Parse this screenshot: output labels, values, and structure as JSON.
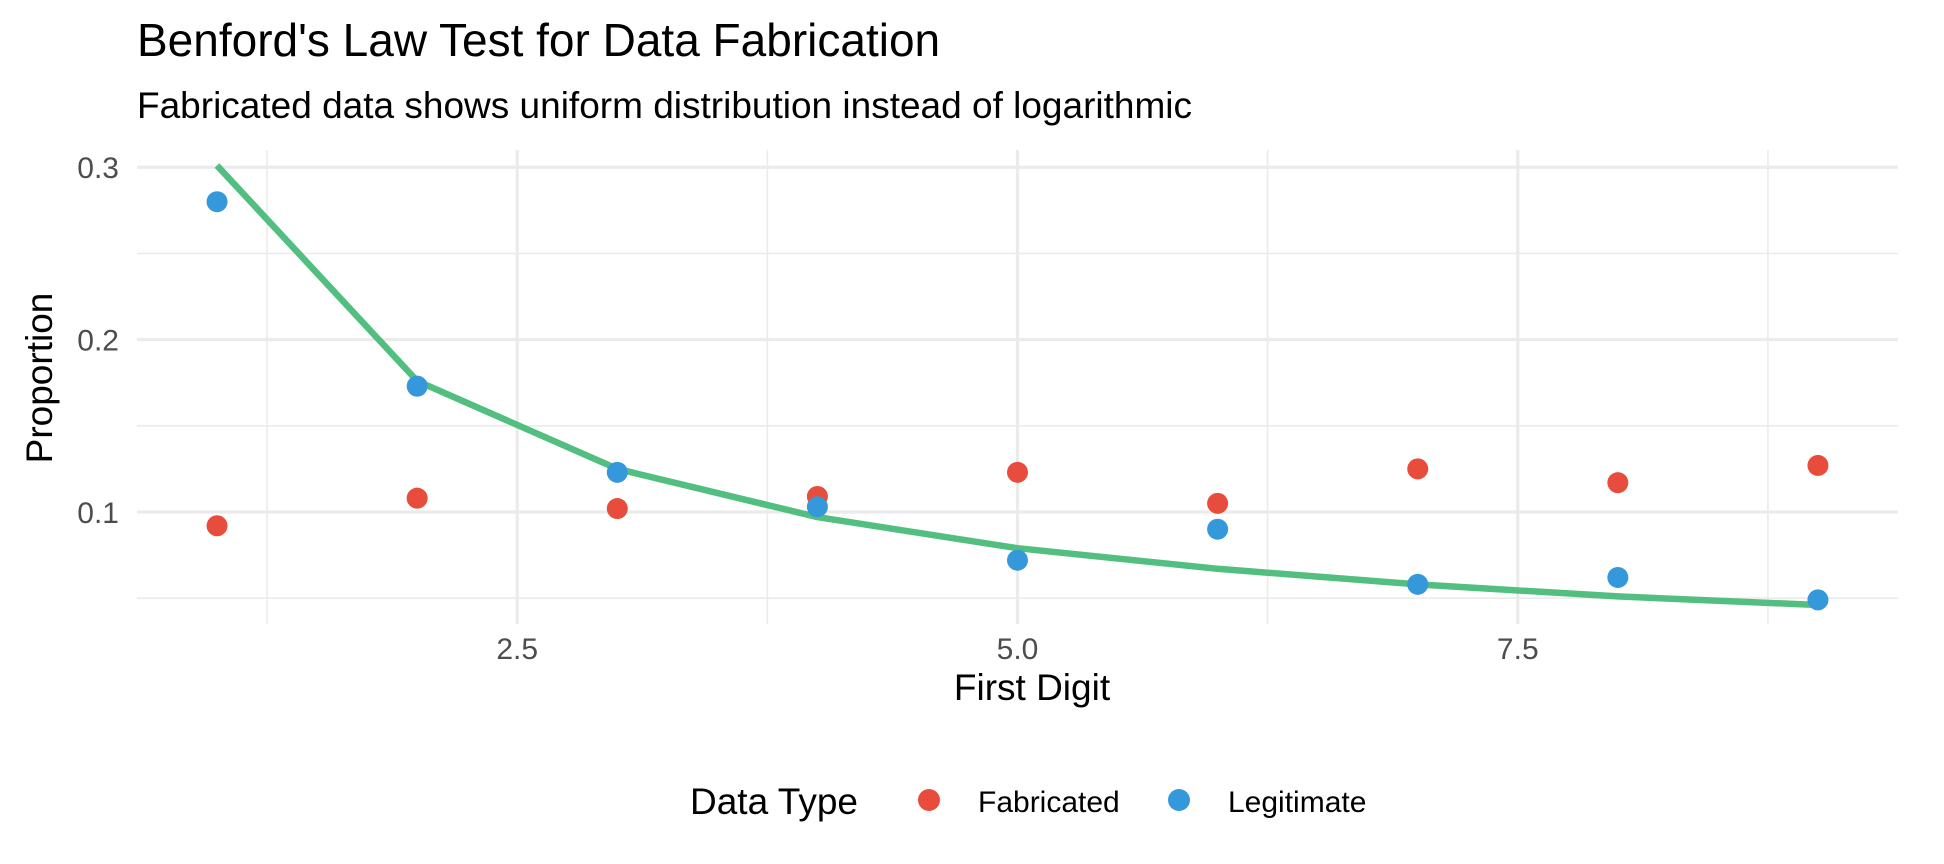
{
  "chart_data": {
    "type": "scatter",
    "title": "Benford's Law Test for Data Fabrication",
    "subtitle": "Fabricated data shows uniform distribution instead of logarithmic",
    "xlabel": "First Digit",
    "ylabel": "Proportion",
    "xlim": [
      0.6,
      9.4
    ],
    "ylim": [
      0.035,
      0.31
    ],
    "x_ticks": [
      2.5,
      5.0,
      7.5
    ],
    "x_tick_labels": [
      "2.5",
      "5.0",
      "7.5"
    ],
    "y_ticks": [
      0.1,
      0.2,
      0.3
    ],
    "y_tick_labels": [
      "0.1",
      "0.2",
      "0.3"
    ],
    "grid": true,
    "legend": {
      "title": "Data Type",
      "position": "bottom"
    },
    "series": [
      {
        "name": "Fabricated",
        "type": "scatter",
        "color": "#e74c3c",
        "x": [
          1,
          2,
          3,
          4,
          5,
          6,
          7,
          8,
          9
        ],
        "y": [
          0.092,
          0.108,
          0.102,
          0.109,
          0.123,
          0.105,
          0.125,
          0.117,
          0.127
        ]
      },
      {
        "name": "Legitimate",
        "type": "scatter",
        "color": "#3498db",
        "x": [
          1,
          2,
          3,
          4,
          5,
          6,
          7,
          8,
          9
        ],
        "y": [
          0.28,
          0.173,
          0.123,
          0.103,
          0.072,
          0.09,
          0.058,
          0.062,
          0.049
        ]
      }
    ],
    "reference_line": {
      "type": "line",
      "color": "#52be80",
      "x": [
        1,
        2,
        3,
        4,
        5,
        6,
        7,
        8,
        9
      ],
      "y": [
        0.301,
        0.176,
        0.125,
        0.097,
        0.079,
        0.067,
        0.058,
        0.051,
        0.046
      ]
    }
  }
}
